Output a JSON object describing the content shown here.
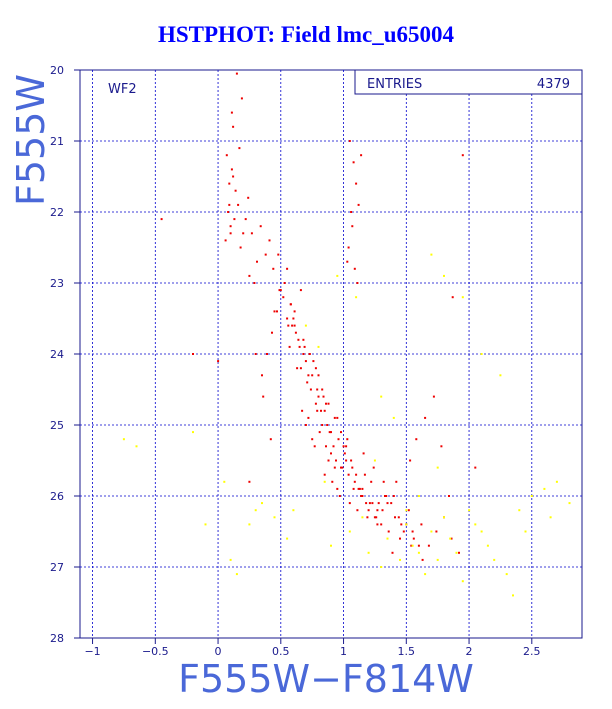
{
  "title": "HSTPHOT: Field lmc_u65004",
  "chart_data": {
    "type": "scatter",
    "title": "HSTPHOT: Field lmc_u65004",
    "xlabel": "F555W−F814W",
    "ylabel": "F555W",
    "xlim": [
      -1.1,
      2.9
    ],
    "ylim": [
      28,
      20
    ],
    "y_inverted": true,
    "xticks": [
      -1,
      -0.5,
      0,
      0.5,
      1,
      1.5,
      2,
      2.5
    ],
    "xtick_labels": [
      "−1",
      "−0.5",
      "0",
      "0.5",
      "1",
      "1.5",
      "2",
      "2.5"
    ],
    "yticks": [
      20,
      21,
      22,
      23,
      24,
      25,
      26,
      27,
      28
    ],
    "ytick_labels": [
      "20",
      "21",
      "22",
      "23",
      "24",
      "25",
      "26",
      "27",
      "28"
    ],
    "grid": true,
    "panel_label": "WF2",
    "stats": {
      "label": "ENTRIES",
      "value": "4379"
    },
    "colors": {
      "main": "#ee0000",
      "secondary": "#ffff00",
      "grid": "#0000cc",
      "axis": "#1a1a8c"
    },
    "series": [
      {
        "color": "#ee0000",
        "x": [
          0.15,
          0.19,
          0.12,
          0.17,
          0.11,
          0.14,
          0.09,
          0.13,
          0.1,
          0.07,
          0.11,
          0.09,
          0.08,
          0.1,
          0.12,
          0.06,
          0.22,
          0.18,
          0.27,
          0.31,
          0.25,
          0.34,
          0.29,
          0.38,
          0.44,
          0.41,
          0.49,
          0.52,
          0.47,
          0.55,
          0.61,
          0.58,
          0.64,
          0.69,
          0.73,
          0.66,
          0.71,
          0.76,
          0.8,
          0.84,
          0.78,
          0.74,
          0.68,
          0.62,
          0.59,
          0.57,
          0.63,
          0.67,
          0.72,
          0.7,
          0.75,
          0.81,
          0.86,
          0.9,
          0.93,
          0.88,
          0.83,
          0.79,
          0.77,
          0.85,
          0.91,
          0.95,
          0.98,
          1.02,
          0.97,
          1.05,
          1.08,
          1.11,
          1.15,
          1.19,
          1.23,
          1.27,
          1.31,
          1.36,
          1.41,
          1.45,
          1.5,
          1.55,
          1.6,
          1.39,
          1.34,
          1.28,
          1.22,
          1.17,
          1.12,
          1.07,
          1.01,
          0.96,
          0.89,
          0.94,
          1.0,
          1.04,
          1.09,
          1.14,
          1.2,
          1.25,
          1.3,
          1.35,
          1.4,
          1.44,
          1.48,
          1.52,
          1.56,
          1.62,
          1.68,
          1.74,
          1.8,
          1.86,
          1.92,
          1.05,
          1.08,
          1.1,
          1.12,
          1.07,
          1.04,
          1.09,
          1.14,
          1.06,
          1.03,
          1.11,
          0.55,
          0.5,
          0.45,
          0.48,
          0.53,
          0.58,
          0.43,
          0.39,
          0.35,
          0.61,
          0.56,
          0.66,
          0.82,
          0.87,
          0.92,
          0.99,
          1.13,
          1.18,
          1.26,
          1.33,
          1.42,
          1.53,
          1.58,
          1.65,
          1.72,
          1.78,
          1.84,
          0.3,
          0.36,
          0.42,
          0.72,
          0.79,
          0.86,
          0.95,
          1.03,
          1.16,
          1.24,
          1.32,
          1.38,
          1.46,
          1.54,
          1.63,
          0.65,
          0.7,
          0.75,
          0.8,
          0.85,
          0.9,
          0.6,
          0.68,
          0.73,
          0.78,
          0.83,
          0.88,
          0.93,
          0.98,
          1.02,
          1.06,
          1.1,
          1.15,
          1.21,
          1.27,
          -0.45,
          -0.2,
          0.0,
          0.25,
          1.95,
          2.05,
          1.87,
          0.24,
          0.16,
          0.2
        ],
        "y": [
          20.05,
          20.4,
          20.8,
          21.1,
          21.4,
          21.7,
          21.9,
          22.1,
          22.3,
          21.2,
          20.6,
          21.6,
          22.0,
          22.2,
          21.5,
          22.4,
          22.1,
          22.5,
          22.3,
          22.7,
          22.9,
          22.2,
          23.0,
          22.6,
          22.8,
          22.4,
          23.1,
          23.2,
          23.4,
          23.5,
          23.6,
          23.3,
          23.8,
          23.9,
          24.0,
          24.2,
          24.4,
          24.1,
          24.3,
          24.6,
          24.7,
          24.5,
          24.0,
          23.7,
          23.6,
          23.9,
          24.2,
          24.8,
          24.9,
          25.0,
          25.2,
          25.1,
          25.3,
          25.4,
          25.6,
          25.5,
          25.0,
          24.8,
          25.3,
          25.7,
          25.8,
          25.9,
          25.6,
          25.5,
          26.0,
          26.1,
          25.9,
          26.2,
          26.0,
          26.3,
          26.1,
          26.4,
          26.2,
          26.5,
          26.3,
          26.6,
          26.4,
          26.5,
          26.7,
          26.8,
          26.0,
          26.1,
          25.8,
          25.7,
          25.9,
          25.6,
          25.4,
          25.2,
          25.1,
          25.5,
          25.3,
          25.7,
          25.8,
          26.0,
          26.2,
          26.3,
          26.4,
          26.1,
          26.0,
          26.3,
          26.5,
          26.2,
          26.6,
          26.4,
          26.7,
          26.5,
          26.3,
          26.6,
          26.8,
          21.0,
          21.3,
          21.6,
          21.9,
          22.2,
          22.5,
          22.8,
          21.2,
          22.0,
          22.7,
          23.0,
          22.8,
          23.1,
          23.4,
          22.6,
          23.0,
          23.3,
          23.7,
          24.0,
          24.3,
          23.4,
          23.6,
          23.1,
          24.8,
          25.0,
          25.3,
          25.6,
          25.9,
          26.1,
          26.3,
          26.0,
          25.8,
          25.5,
          25.2,
          24.9,
          24.6,
          25.3,
          26.0,
          24.0,
          24.6,
          25.2,
          24.3,
          24.5,
          24.7,
          24.9,
          25.2,
          25.4,
          25.6,
          25.8,
          26.1,
          26.4,
          26.7,
          26.9,
          23.9,
          24.1,
          24.3,
          24.6,
          24.8,
          25.1,
          23.5,
          23.8,
          24.0,
          24.2,
          24.5,
          24.7,
          24.9,
          25.1,
          25.3,
          25.5,
          25.7,
          25.9,
          26.1,
          26.2,
          22.1,
          24.0,
          24.1,
          25.8,
          21.2,
          25.6,
          23.2,
          21.8,
          21.9,
          22.3
        ]
      },
      {
        "color": "#ffff00",
        "x": [
          -0.75,
          -0.65,
          -0.2,
          -0.1,
          0.05,
          0.1,
          0.15,
          0.35,
          0.45,
          0.55,
          0.6,
          0.9,
          1.05,
          1.2,
          1.3,
          1.35,
          1.45,
          1.5,
          1.55,
          1.6,
          1.65,
          1.7,
          1.75,
          1.8,
          1.85,
          1.9,
          1.95,
          2.0,
          2.05,
          2.1,
          2.15,
          2.2,
          2.3,
          2.35,
          2.4,
          2.5,
          2.6,
          2.7,
          2.8,
          1.7,
          1.8,
          1.95,
          2.1,
          2.25,
          0.25,
          0.3,
          0.85,
          1.15,
          1.4,
          1.25,
          0.8,
          0.7,
          1.1,
          0.95,
          1.6,
          1.3,
          2.45,
          2.65,
          1.75,
          1.5
        ],
        "y": [
          25.2,
          25.3,
          25.1,
          26.4,
          25.8,
          26.9,
          27.1,
          26.1,
          26.3,
          26.6,
          26.2,
          26.7,
          26.5,
          26.8,
          27.0,
          26.6,
          26.9,
          26.4,
          26.7,
          26.8,
          27.1,
          26.5,
          26.9,
          26.3,
          26.6,
          26.8,
          27.2,
          26.2,
          26.4,
          26.5,
          26.7,
          26.9,
          27.1,
          27.4,
          26.2,
          26.0,
          25.9,
          25.8,
          26.1,
          22.6,
          22.9,
          23.2,
          24.0,
          24.3,
          26.4,
          26.2,
          25.8,
          26.3,
          24.9,
          25.5,
          23.9,
          23.6,
          23.2,
          22.9,
          26.0,
          24.6,
          26.5,
          26.3,
          25.6,
          26.2
        ]
      }
    ]
  }
}
